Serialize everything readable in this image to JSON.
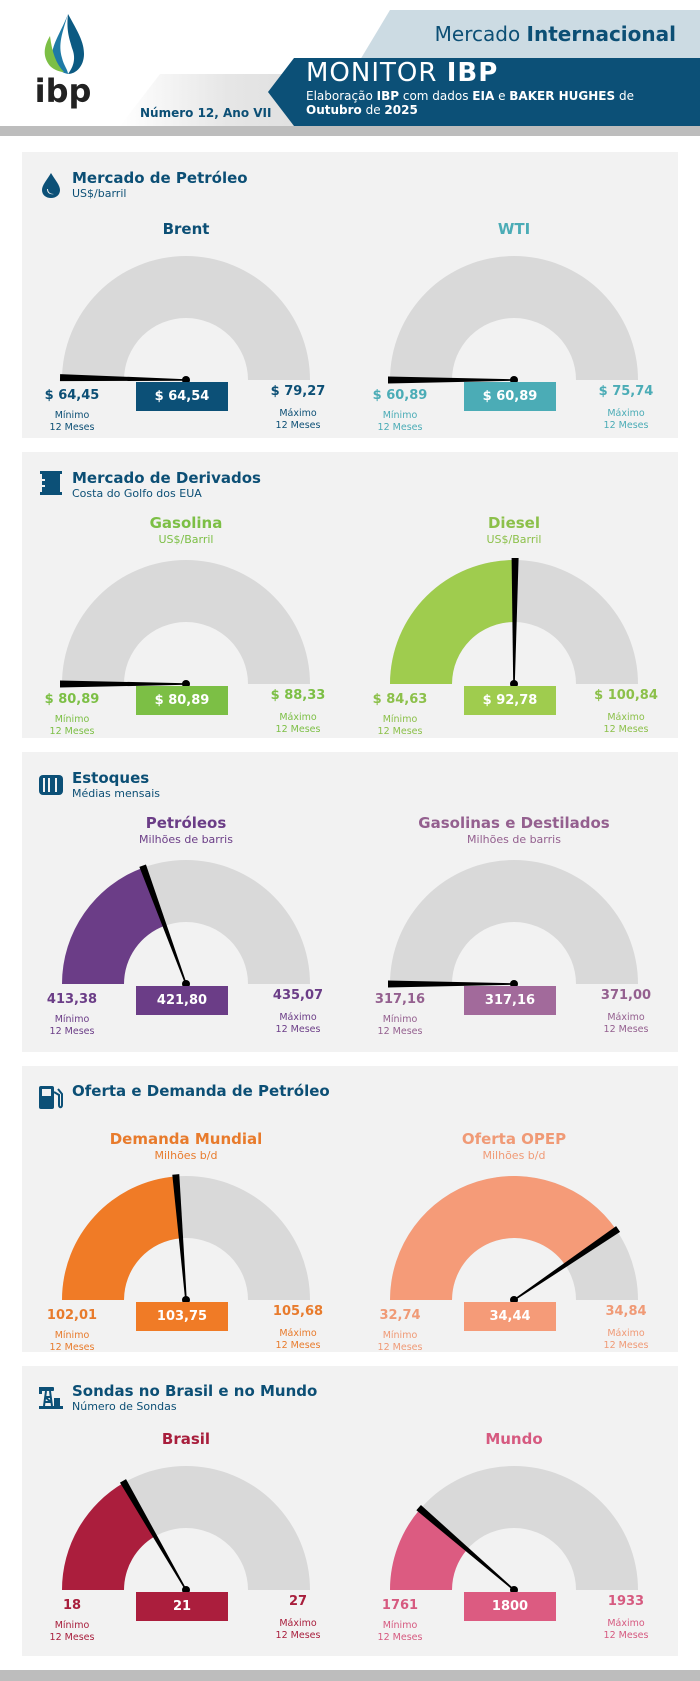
{
  "header": {
    "section": "Mercado",
    "section_bold": "Internacional",
    "monitor": "MONITOR",
    "monitor_bold": "IBP",
    "elab_1": "Elaboração ",
    "elab_ibp": "IBP",
    "elab_2": " com dados ",
    "elab_eia": "EIA",
    "elab_3": " e ",
    "elab_bh": "BAKER HUGHES",
    "elab_4": " de ",
    "elab_month": "Outubro",
    "elab_5": " de ",
    "elab_year": "2025",
    "numero": "Número 12, Ano VII",
    "logo_text": "ibp"
  },
  "common": {
    "min_label": "Mínimo",
    "max_label": "Máximo",
    "period": "12 Meses"
  },
  "colors": {
    "brand": "#0c4f75",
    "track": "#d9d9d9",
    "panel_bg": "#f2f2f2"
  },
  "sections": [
    {
      "title": "Mercado de Petróleo",
      "subtitle": "US$/barril",
      "icon": "oil-drop-icon"
    },
    {
      "title": "Mercado de Derivados",
      "subtitle": "Costa do Golfo dos EUA",
      "icon": "barrel-icon"
    },
    {
      "title": "Estoques",
      "subtitle": "Médias mensais",
      "icon": "storage-tank-icon"
    },
    {
      "title": "Oferta e Demanda de Petróleo",
      "subtitle": "",
      "icon": "fuel-pump-icon"
    },
    {
      "title": "Sondas no Brasil e no Mundo",
      "subtitle": "Número de Sondas",
      "icon": "oil-rig-icon"
    }
  ],
  "chart_data": [
    {
      "type": "gauge",
      "title": "Brent",
      "unit": "",
      "min": 64.45,
      "max": 79.27,
      "value": 64.54,
      "min_text": "$ 64,45",
      "max_text": "$ 79,27",
      "value_text": "$ 64,54",
      "color": "#0c5077",
      "text_color": "#0c4f75"
    },
    {
      "type": "gauge",
      "title": "WTI",
      "unit": "",
      "min": 60.89,
      "max": 75.74,
      "value": 60.89,
      "min_text": "$ 60,89",
      "max_text": "$ 75,74",
      "value_text": "$ 60,89",
      "color": "#4bacb6",
      "text_color": "#4bacb6"
    },
    {
      "type": "gauge",
      "title": "Gasolina",
      "unit": "US$/Barril",
      "min": 80.89,
      "max": 88.33,
      "value": 80.89,
      "min_text": "$ 80,89",
      "max_text": "$ 88,33",
      "value_text": "$ 80,89",
      "color": "#7cbf45",
      "text_color": "#7cbf45"
    },
    {
      "type": "gauge",
      "title": "Diesel",
      "unit": "US$/Barril",
      "min": 84.63,
      "max": 100.84,
      "value": 92.78,
      "min_text": "$ 84,63",
      "max_text": "$ 100,84",
      "value_text": "$ 92,78",
      "color": "#9fcc4e",
      "text_color": "#8cc04a"
    },
    {
      "type": "gauge",
      "title": "Petróleos",
      "unit": "Milhões de barris",
      "min": 413.38,
      "max": 435.07,
      "value": 421.8,
      "min_text": "413,38",
      "max_text": "435,07",
      "value_text": "421,80",
      "color": "#6b3d87",
      "text_color": "#6b3d87"
    },
    {
      "type": "gauge",
      "title": "Gasolinas e Destilados",
      "unit": "Milhões de barris",
      "min": 317.16,
      "max": 371.0,
      "value": 317.16,
      "min_text": "317,16",
      "max_text": "371,00",
      "value_text": "317,16",
      "color": "#a26a9b",
      "text_color": "#94608f"
    },
    {
      "type": "gauge",
      "title": "Demanda Mundial",
      "unit": "Milhões b/d",
      "min": 102.01,
      "max": 105.68,
      "value": 103.75,
      "min_text": "102,01",
      "max_text": "105,68",
      "value_text": "103,75",
      "color": "#f07b26",
      "text_color": "#e87b2c"
    },
    {
      "type": "gauge",
      "title": "Oferta OPEP",
      "unit": "Milhões b/d",
      "min": 32.74,
      "max": 34.84,
      "value": 34.44,
      "min_text": "32,74",
      "max_text": "34,84",
      "value_text": "34,44",
      "color": "#f59b78",
      "text_color": "#f09a76"
    },
    {
      "type": "gauge",
      "title": "Brasil",
      "unit": "",
      "min": 18,
      "max": 27,
      "value": 21,
      "min_text": "18",
      "max_text": "27",
      "value_text": "21",
      "color": "#ab1e3d",
      "text_color": "#a81e3c"
    },
    {
      "type": "gauge",
      "title": "Mundo",
      "unit": "",
      "min": 1761,
      "max": 1933,
      "value": 1800,
      "min_text": "1761",
      "max_text": "1933",
      "value_text": "1800",
      "color": "#dc5b81",
      "text_color": "#d65a80"
    }
  ]
}
